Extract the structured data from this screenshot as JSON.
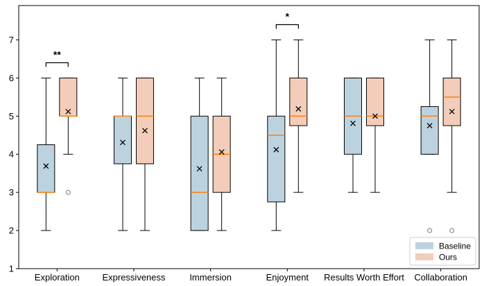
{
  "chart_data": {
    "type": "boxplot",
    "title": "",
    "xlabel": "",
    "ylabel": "",
    "ylim": [
      1,
      7.9
    ],
    "yticks": [
      1,
      2,
      3,
      4,
      5,
      6,
      7
    ],
    "categories": [
      "Exploration",
      "Expressiveness",
      "Immersion",
      "Enjoyment",
      "Results Worth Effort",
      "Collaboration"
    ],
    "series": [
      {
        "name": "Baseline",
        "color": "#bcd3df",
        "boxes": [
          {
            "whisker_low": 2,
            "q1": 3,
            "median": 3,
            "q3": 4.25,
            "whisker_high": 6,
            "mean": 3.69,
            "outliers": []
          },
          {
            "whisker_low": 2,
            "q1": 3.75,
            "median": 5,
            "q3": 5,
            "whisker_high": 6,
            "mean": 4.31,
            "outliers": []
          },
          {
            "whisker_low": 2,
            "q1": 2,
            "median": 3,
            "q3": 5,
            "whisker_high": 6,
            "mean": 3.62,
            "outliers": []
          },
          {
            "whisker_low": 2,
            "q1": 2.75,
            "median": 4.5,
            "q3": 5,
            "whisker_high": 7,
            "mean": 4.12,
            "outliers": []
          },
          {
            "whisker_low": 3,
            "q1": 4,
            "median": 5,
            "q3": 6,
            "whisker_high": 6,
            "mean": 4.81,
            "outliers": []
          },
          {
            "whisker_low": 4,
            "q1": 4,
            "median": 5,
            "q3": 5.25,
            "whisker_high": 7,
            "mean": 4.75,
            "outliers": [
              2
            ]
          }
        ]
      },
      {
        "name": "Ours",
        "color": "#f3cdb9",
        "boxes": [
          {
            "whisker_low": 4,
            "q1": 5,
            "median": 5,
            "q3": 6,
            "whisker_high": 6,
            "mean": 5.12,
            "outliers": [
              3
            ]
          },
          {
            "whisker_low": 2,
            "q1": 3.75,
            "median": 5,
            "q3": 6,
            "whisker_high": 6,
            "mean": 4.62,
            "outliers": []
          },
          {
            "whisker_low": 2,
            "q1": 3,
            "median": 4,
            "q3": 5,
            "whisker_high": 6,
            "mean": 4.06,
            "outliers": []
          },
          {
            "whisker_low": 3,
            "q1": 4.75,
            "median": 5,
            "q3": 6,
            "whisker_high": 7,
            "mean": 5.19,
            "outliers": []
          },
          {
            "whisker_low": 3,
            "q1": 4.75,
            "median": 5,
            "q3": 6,
            "whisker_high": 6,
            "mean": 5.0,
            "outliers": []
          },
          {
            "whisker_low": 3,
            "q1": 4.75,
            "median": 5.5,
            "q3": 6,
            "whisker_high": 7,
            "mean": 5.12,
            "outliers": [
              2
            ]
          }
        ]
      }
    ],
    "median_color": "#ff7f0e",
    "mean_marker": "x",
    "significance": [
      {
        "category_index": 0,
        "label": "**",
        "y": 6.4
      },
      {
        "category_index": 3,
        "label": "*",
        "y": 7.4
      }
    ],
    "legend": {
      "placement": "bottom-right",
      "entries": [
        {
          "label": "Baseline",
          "color": "#bcd3df"
        },
        {
          "label": "Ours",
          "color": "#f3cdb9"
        }
      ]
    },
    "grid": false
  }
}
